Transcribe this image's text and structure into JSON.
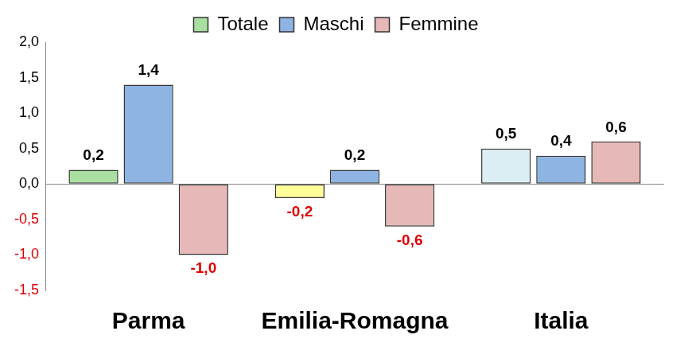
{
  "chart_data": {
    "type": "bar",
    "categories": [
      "Parma",
      "Emilia-Romagna",
      "Italia"
    ],
    "series": [
      {
        "name": "Totale",
        "colors": [
          "#a9e0a0",
          "#ffff99",
          "#dbeef4"
        ],
        "values": [
          0.2,
          -0.2,
          0.5
        ],
        "value_labels": [
          "0,2",
          "-0,2",
          "0,5"
        ]
      },
      {
        "name": "Maschi",
        "color": "#8db4e2",
        "values": [
          1.4,
          0.2,
          0.4
        ],
        "value_labels": [
          "1,4",
          "0,2",
          "0,4"
        ]
      },
      {
        "name": "Femmine",
        "color": "#e6b8b7",
        "values": [
          -1.0,
          -0.6,
          0.6
        ],
        "value_labels": [
          "-1,0",
          "-0,6",
          "0,6"
        ]
      }
    ],
    "ylim": [
      -1.5,
      2.0
    ],
    "yticks": [
      {
        "value": -1.5,
        "label": "-1,5"
      },
      {
        "value": -1.0,
        "label": "-1,0"
      },
      {
        "value": -0.5,
        "label": "-0,5"
      },
      {
        "value": 0.0,
        "label": "0,0"
      },
      {
        "value": 0.5,
        "label": "0,5"
      },
      {
        "value": 1.0,
        "label": "1,0"
      },
      {
        "value": 1.5,
        "label": "1,5"
      },
      {
        "value": 2.0,
        "label": "2,0"
      }
    ],
    "grid": false,
    "legend": "top",
    "data_labels": true
  }
}
